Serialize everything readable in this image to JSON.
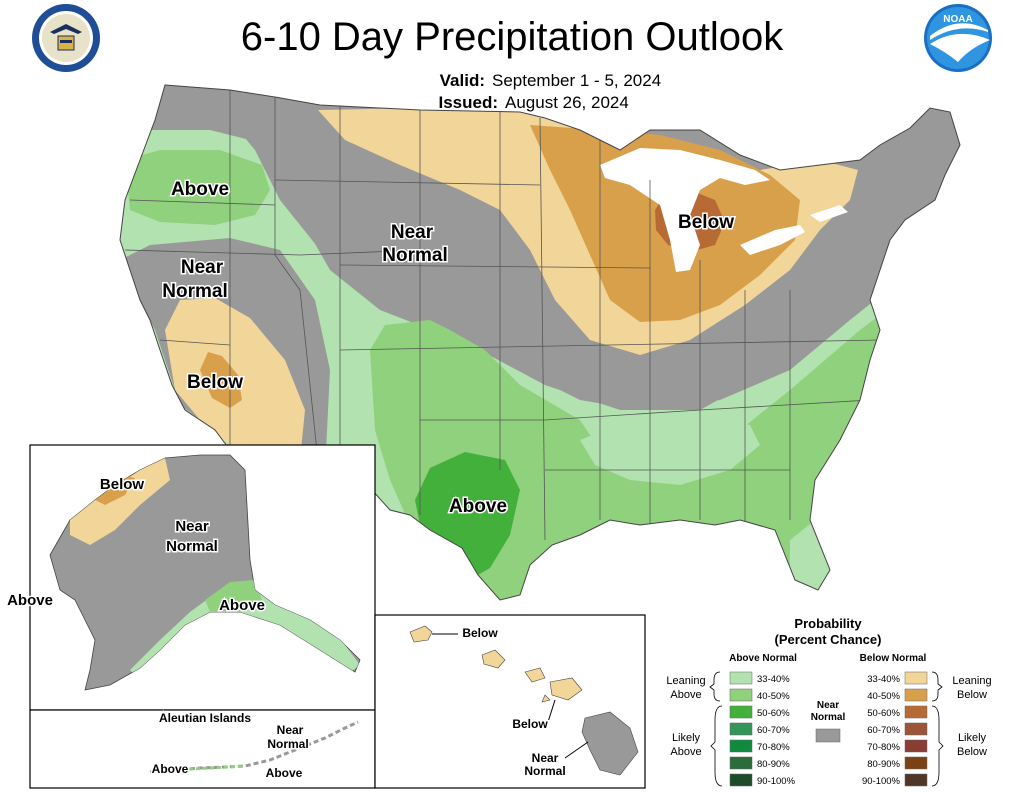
{
  "header": {
    "title": "6-10 Day Precipitation Outlook",
    "valid_label": "Valid:",
    "valid_value": "September 1 - 5, 2024",
    "issued_label": "Issued:",
    "issued_value": "August 26, 2024"
  },
  "logos": {
    "left": "doc-seal-icon",
    "right": "noaa-logo-icon"
  },
  "colors": {
    "near_normal": "#999999",
    "above_33_40": "#b2e2b0",
    "above_40_50": "#8fd17c",
    "above_50_60": "#44b03c",
    "above_60_70": "#33955a",
    "above_70_80": "#0f8a3e",
    "above_80_90": "#2c6b3a",
    "above_90_100": "#1d4d28",
    "below_33_40": "#f2d598",
    "below_40_50": "#d9a04c",
    "below_50_60": "#b86a35",
    "below_60_70": "#9c5536",
    "below_70_80": "#8a3d32",
    "below_80_90": "#7a4214",
    "below_90_100": "#4e3727",
    "water": "#ffffff",
    "state_lines": "#555555"
  },
  "map_labels": {
    "conus": [
      {
        "id": "above-northwest",
        "text": "Above"
      },
      {
        "id": "near-normal-west",
        "text_lines": [
          "Near",
          "Normal"
        ]
      },
      {
        "id": "below-southwest",
        "text": "Below"
      },
      {
        "id": "near-normal-north",
        "text_lines": [
          "Near",
          "Normal"
        ]
      },
      {
        "id": "below-great-lakes",
        "text": "Below"
      },
      {
        "id": "above-texas",
        "text": "Above"
      }
    ],
    "alaska": [
      {
        "id": "below-north-alaska",
        "text": "Below"
      },
      {
        "id": "near-normal-alaska",
        "text_lines": [
          "Near",
          "Normal"
        ]
      },
      {
        "id": "above-south-alaska",
        "text": "Above"
      },
      {
        "id": "above-west-alaska",
        "text": "Above"
      }
    ],
    "aleutians": {
      "title": "Aleutian Islands",
      "near_normal": [
        "Near",
        "Normal"
      ],
      "above_left": "Above",
      "above_right": "Above"
    },
    "hawaii": {
      "below_top": "Below",
      "below_mid": "Below",
      "near_normal": [
        "Near",
        "Normal"
      ]
    }
  },
  "legend": {
    "title": "Probability",
    "subtitle": "(Percent Chance)",
    "above_header": "Above Normal",
    "below_header": "Below Normal",
    "near_normal_label": [
      "Near",
      "Normal"
    ],
    "leaning_above": [
      "Leaning",
      "Above"
    ],
    "likely_above": [
      "Likely",
      "Above"
    ],
    "leaning_below": [
      "Leaning",
      "Below"
    ],
    "likely_below": [
      "Likely",
      "Below"
    ],
    "ranges": [
      "33-40%",
      "40-50%",
      "50-60%",
      "60-70%",
      "70-80%",
      "80-90%",
      "90-100%"
    ]
  }
}
